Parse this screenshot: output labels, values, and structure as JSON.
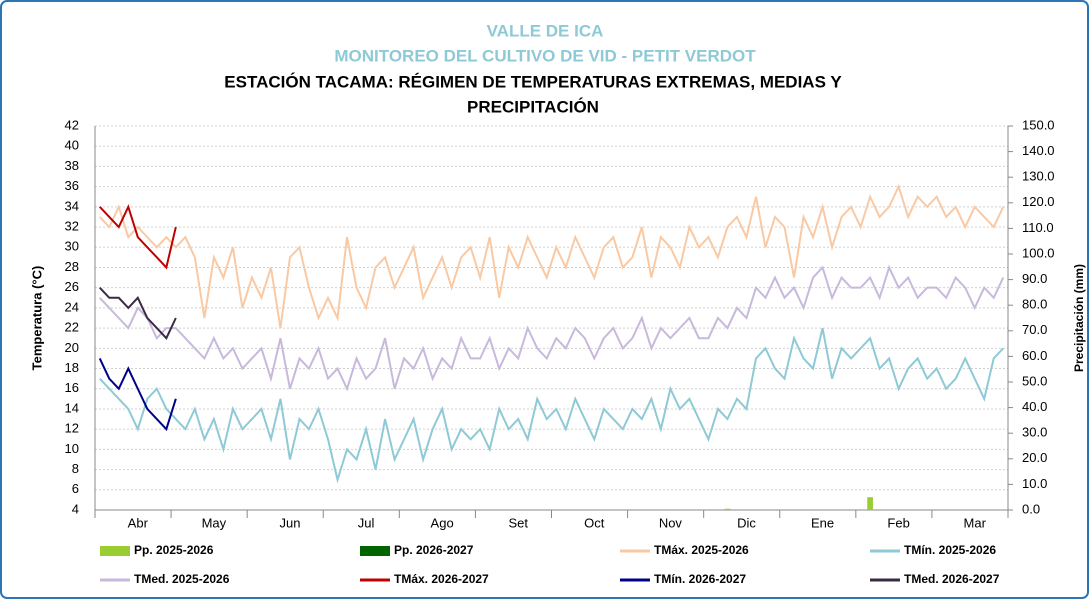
{
  "chart_data": {
    "type": "line",
    "supertitle": [
      "VALLE DE ICA",
      "MONITOREO DEL CULTIVO DE VID - PETIT VERDOT"
    ],
    "title": [
      "ESTACIÓN TACAMA: RÉGIMEN DE TEMPERATURAS EXTREMAS, MEDIAS Y",
      "PRECIPITACIÓN"
    ],
    "y_label": "Temperatura (°C)",
    "y2_label": "Precipitación (mm)",
    "categories": [
      null,
      null,
      null,
      null,
      "Abr",
      null,
      null,
      null,
      null,
      null,
      null,
      null,
      "May",
      null,
      null,
      null,
      null,
      null,
      null,
      null,
      "Jun",
      null,
      null,
      null,
      null,
      null,
      null,
      null,
      "Jul",
      null,
      null,
      null,
      null,
      null,
      null,
      null,
      "Ago",
      null,
      null,
      null,
      null,
      null,
      null,
      null,
      "Set",
      null,
      null,
      null,
      null,
      null,
      null,
      null,
      "Oct",
      null,
      null,
      null,
      null,
      null,
      null,
      null,
      "Nov",
      null,
      null,
      null,
      null,
      null,
      null,
      null,
      "Dic",
      null,
      null,
      null,
      null,
      null,
      null,
      null,
      "Ene",
      null,
      null,
      null,
      null,
      null,
      null,
      null,
      "Feb",
      null,
      null,
      null,
      null,
      null,
      null,
      null,
      "Mar",
      null,
      null,
      null
    ],
    "ylim": [
      4,
      42
    ],
    "yticks": [
      4,
      6,
      8,
      10,
      12,
      14,
      16,
      18,
      20,
      22,
      24,
      26,
      28,
      30,
      32,
      34,
      36,
      38,
      40,
      42
    ],
    "y2lim": [
      0,
      150
    ],
    "y2ticks": [
      {
        "value": 0,
        "label": "0.0"
      },
      {
        "value": 10,
        "label": "10.0"
      },
      {
        "value": 20,
        "label": "20.0"
      },
      {
        "value": 30,
        "label": "30.0"
      },
      {
        "value": 40,
        "label": "40.0"
      },
      {
        "value": 50,
        "label": "50.0"
      },
      {
        "value": 60,
        "label": "60.0"
      },
      {
        "value": 70,
        "label": "70.0"
      },
      {
        "value": 80,
        "label": "80.0"
      },
      {
        "value": 90,
        "label": "90.0"
      },
      {
        "value": 100,
        "label": "100.0"
      },
      {
        "value": 110,
        "label": "110.0"
      },
      {
        "value": 120,
        "label": "120.0"
      },
      {
        "value": 130,
        "label": "130.0"
      },
      {
        "value": 140,
        "label": "140.0"
      },
      {
        "value": 150,
        "label": "150.0"
      }
    ],
    "grid": true,
    "legend": "bottom",
    "series": [
      {
        "name": "Pp. 2025-2026",
        "color": "#9acd32",
        "type": "bar",
        "axis": "y2",
        "values": [
          0,
          0,
          0,
          0,
          0,
          0,
          0,
          0,
          0,
          0,
          0,
          0,
          0,
          0,
          0,
          0,
          0,
          0,
          0,
          0,
          0,
          0,
          0,
          0,
          0,
          0,
          0,
          0,
          0,
          0,
          0,
          0,
          0,
          0,
          0,
          0,
          0,
          0,
          0,
          0,
          0,
          0,
          0,
          0,
          0,
          0,
          0,
          0,
          0,
          0,
          0,
          0,
          0,
          0,
          0,
          0,
          0,
          0,
          0,
          0,
          0,
          0,
          0,
          0,
          0,
          0,
          0.5,
          0,
          0,
          0,
          0,
          0,
          0,
          0,
          0,
          0,
          0,
          0,
          0,
          0,
          0,
          5,
          0,
          0,
          0,
          0,
          0,
          0,
          0,
          0,
          0,
          0,
          0,
          0,
          0,
          0
        ]
      },
      {
        "name": "Pp. 2026-2027",
        "color": "#006400",
        "type": "bar",
        "axis": "y2",
        "values": [
          0,
          0,
          0,
          0,
          0,
          0,
          0,
          0,
          0,
          null,
          null,
          null,
          null,
          null,
          null,
          null,
          null,
          null,
          null,
          null,
          null,
          null,
          null,
          null,
          null,
          null,
          null,
          null,
          null,
          null,
          null,
          null,
          null,
          null,
          null,
          null,
          null,
          null,
          null,
          null,
          null,
          null,
          null,
          null,
          null,
          null,
          null,
          null,
          null,
          null,
          null,
          null,
          null,
          null,
          null,
          null,
          null,
          null,
          null,
          null,
          null,
          null,
          null,
          null,
          null,
          null,
          null,
          null,
          null,
          null,
          null,
          null,
          null,
          null,
          null,
          null,
          null,
          null,
          null,
          null,
          null,
          null,
          null,
          null,
          null,
          null,
          null,
          null,
          null,
          null,
          null,
          null,
          null,
          null,
          null,
          null
        ]
      },
      {
        "name": "TMáx. 2025-2026",
        "color": "#f9c9a4",
        "type": "line",
        "values": [
          33,
          32,
          34,
          31,
          32,
          31,
          30,
          31,
          30,
          31,
          29,
          23,
          29,
          27,
          30,
          24,
          27,
          25,
          28,
          22,
          29,
          30,
          26,
          23,
          25,
          23,
          31,
          26,
          24,
          28,
          29,
          26,
          28,
          30,
          25,
          27,
          29,
          26,
          29,
          30,
          27,
          31,
          25,
          30,
          28,
          31,
          29,
          27,
          30,
          28,
          31,
          29,
          27,
          30,
          31,
          28,
          29,
          32,
          27,
          31,
          30,
          28,
          32,
          30,
          31,
          29,
          32,
          33,
          31,
          35,
          30,
          33,
          32,
          27,
          33,
          31,
          34,
          30,
          33,
          34,
          32,
          35,
          33,
          34,
          36,
          33,
          35,
          34,
          35,
          33,
          34,
          32,
          34,
          33,
          32,
          34
        ]
      },
      {
        "name": "TMín. 2025-2026",
        "color": "#8ec9d6",
        "type": "line",
        "values": [
          17,
          16,
          15,
          14,
          12,
          15,
          16,
          14,
          13,
          12,
          14,
          11,
          13,
          10,
          14,
          12,
          13,
          14,
          11,
          15,
          9,
          13,
          12,
          14,
          11,
          7,
          10,
          9,
          12,
          8,
          13,
          9,
          11,
          13,
          9,
          12,
          14,
          10,
          12,
          11,
          12,
          10,
          14,
          12,
          13,
          11,
          15,
          13,
          14,
          12,
          15,
          13,
          11,
          14,
          13,
          12,
          14,
          13,
          15,
          12,
          16,
          14,
          15,
          13,
          11,
          14,
          13,
          15,
          14,
          19,
          20,
          18,
          17,
          21,
          19,
          18,
          22,
          17,
          20,
          19,
          20,
          21,
          18,
          19,
          16,
          18,
          19,
          17,
          18,
          16,
          17,
          19,
          17,
          15,
          19,
          20
        ]
      },
      {
        "name": "TMed. 2025-2026",
        "color": "#c8b9dc",
        "type": "line",
        "values": [
          25,
          24,
          23,
          22,
          24,
          23,
          21,
          22,
          22,
          21,
          20,
          19,
          21,
          19,
          20,
          18,
          19,
          20,
          17,
          21,
          16,
          19,
          18,
          20,
          17,
          18,
          16,
          19,
          17,
          18,
          21,
          16,
          19,
          18,
          20,
          17,
          19,
          18,
          21,
          19,
          19,
          21,
          18,
          20,
          19,
          22,
          20,
          19,
          21,
          20,
          22,
          21,
          19,
          21,
          22,
          20,
          21,
          23,
          20,
          22,
          21,
          22,
          23,
          21,
          21,
          23,
          22,
          24,
          23,
          26,
          25,
          27,
          25,
          26,
          24,
          27,
          28,
          25,
          27,
          26,
          26,
          27,
          25,
          28,
          26,
          27,
          25,
          26,
          26,
          25,
          27,
          26,
          24,
          26,
          25,
          27
        ]
      },
      {
        "name": "TMáx. 2026-2027",
        "color": "#c00000",
        "type": "line",
        "values": [
          34,
          33,
          32,
          34,
          31,
          30,
          29,
          28,
          32,
          null,
          null,
          null,
          null,
          null,
          null,
          null,
          null,
          null,
          null,
          null,
          null,
          null,
          null,
          null,
          null,
          null,
          null,
          null,
          null,
          null,
          null,
          null,
          null,
          null,
          null,
          null,
          null,
          null,
          null,
          null,
          null,
          null,
          null,
          null,
          null,
          null,
          null,
          null,
          null,
          null,
          null,
          null,
          null,
          null,
          null,
          null,
          null,
          null,
          null,
          null,
          null,
          null,
          null,
          null,
          null,
          null,
          null,
          null,
          null,
          null,
          null,
          null,
          null,
          null,
          null,
          null,
          null,
          null,
          null,
          null,
          null,
          null,
          null,
          null,
          null,
          null,
          null,
          null,
          null,
          null,
          null,
          null,
          null,
          null,
          null,
          null
        ]
      },
      {
        "name": "TMín. 2026-2027",
        "color": "#00008b",
        "type": "line",
        "values": [
          19,
          17,
          16,
          18,
          16,
          14,
          13,
          12,
          15,
          null,
          null,
          null,
          null,
          null,
          null,
          null,
          null,
          null,
          null,
          null,
          null,
          null,
          null,
          null,
          null,
          null,
          null,
          null,
          null,
          null,
          null,
          null,
          null,
          null,
          null,
          null,
          null,
          null,
          null,
          null,
          null,
          null,
          null,
          null,
          null,
          null,
          null,
          null,
          null,
          null,
          null,
          null,
          null,
          null,
          null,
          null,
          null,
          null,
          null,
          null,
          null,
          null,
          null,
          null,
          null,
          null,
          null,
          null,
          null,
          null,
          null,
          null,
          null,
          null,
          null,
          null,
          null,
          null,
          null,
          null,
          null,
          null,
          null,
          null,
          null,
          null,
          null,
          null,
          null,
          null,
          null,
          null,
          null,
          null,
          null,
          null
        ]
      },
      {
        "name": "TMed. 2026-2027",
        "color": "#3b2a45",
        "type": "line",
        "values": [
          26,
          25,
          25,
          24,
          25,
          23,
          22,
          21,
          23,
          null,
          null,
          null,
          null,
          null,
          null,
          null,
          null,
          null,
          null,
          null,
          null,
          null,
          null,
          null,
          null,
          null,
          null,
          null,
          null,
          null,
          null,
          null,
          null,
          null,
          null,
          null,
          null,
          null,
          null,
          null,
          null,
          null,
          null,
          null,
          null,
          null,
          null,
          null,
          null,
          null,
          null,
          null,
          null,
          null,
          null,
          null,
          null,
          null,
          null,
          null,
          null,
          null,
          null,
          null,
          null,
          null,
          null,
          null,
          null,
          null,
          null,
          null,
          null,
          null,
          null,
          null,
          null,
          null,
          null,
          null,
          null,
          null,
          null,
          null,
          null,
          null,
          null,
          null,
          null,
          null,
          null,
          null,
          null,
          null,
          null,
          null
        ]
      }
    ]
  }
}
